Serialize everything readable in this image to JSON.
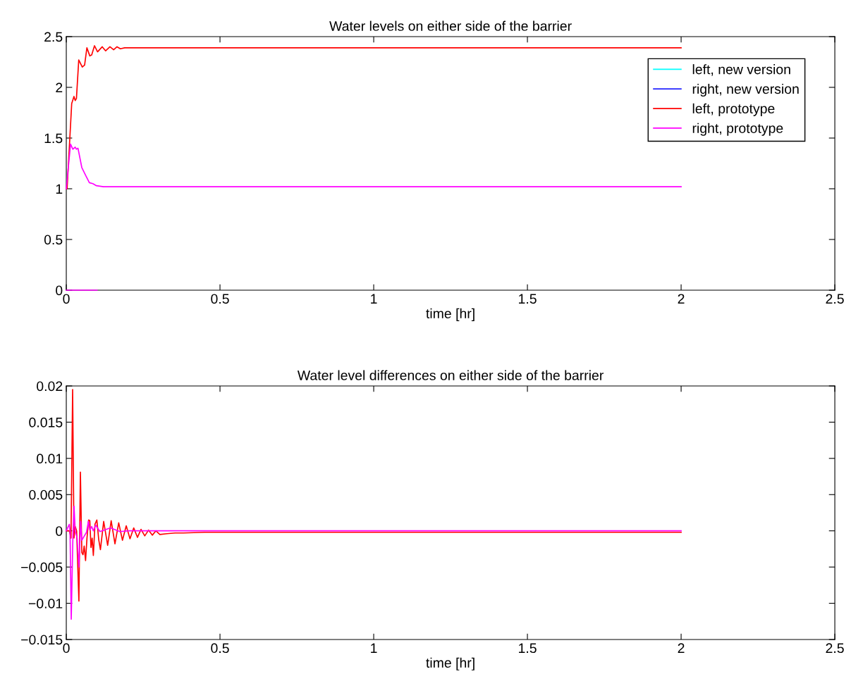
{
  "chart_data": [
    {
      "type": "line",
      "title": "Water levels on either side of the barrier",
      "xlabel": "time [hr]",
      "xlim": [
        0,
        2.5
      ],
      "xticks": [
        0,
        0.5,
        1,
        1.5,
        2,
        2.5
      ],
      "ylim": [
        0,
        2.5
      ],
      "yticks": [
        0,
        0.5,
        1,
        1.5,
        2,
        2.5
      ],
      "grid": false,
      "legend": "top right",
      "series": [
        {
          "name": "left, new version",
          "color": "#00ffff"
        },
        {
          "name": "right, new version",
          "color": "#0000ff"
        },
        {
          "name": "left, prototype",
          "color": "#ff0000",
          "x": [
            0,
            0.0026,
            0.0176,
            0.025,
            0.029,
            0.033,
            0.0405,
            0.052,
            0.0596,
            0.067,
            0.0765,
            0.0826,
            0.0917,
            0.1017,
            0.117,
            0.128,
            0.142,
            0.154,
            0.165,
            0.176,
            0.19,
            0.213,
            2
          ],
          "values": [
            1,
            1,
            1.84,
            1.91,
            1.87,
            1.89,
            2.27,
            2.2,
            2.22,
            2.39,
            2.31,
            2.32,
            2.41,
            2.35,
            2.4,
            2.36,
            2.4,
            2.37,
            2.4,
            2.38,
            2.39,
            2.39,
            2.39
          ]
        },
        {
          "name": "right, prototype",
          "color": "#ff00ff",
          "x": [
            0,
            0.0138,
            0.0214,
            0.029,
            0.033,
            0.038,
            0.0504,
            0.0634,
            0.075,
            0.0864,
            0.098,
            0.121,
            2
          ],
          "values": [
            1,
            1.44,
            1.39,
            1.41,
            1.39,
            1.4,
            1.21,
            1.13,
            1.06,
            1.05,
            1.03,
            1.02,
            1.02
          ]
        },
        {
          "color": "#ff00ff",
          "x": [
            0,
            0.1
          ],
          "values": [
            0,
            0
          ]
        }
      ]
    },
    {
      "type": "line",
      "title": "Water level differences on either side of the barrier",
      "xlabel": "time [hr]",
      "xlim": [
        0,
        2.5
      ],
      "xticks": [
        0,
        0.5,
        1,
        1.5,
        2,
        2.5
      ],
      "ylim": [
        -0.015,
        0.02
      ],
      "yticks": [
        {
          "value": -0.015,
          "label": "−0.015"
        },
        {
          "value": -0.01,
          "label": "−0.01"
        },
        {
          "value": -0.005,
          "label": "−0.005"
        },
        0,
        0.005,
        0.01,
        0.015,
        0.02
      ],
      "grid": false,
      "series": [
        {
          "color": "#ff0000",
          "x": [
            0,
            0.0099,
            0.0153,
            0.0206,
            0.025,
            0.029,
            0.0336,
            0.041,
            0.0459,
            0.0505,
            0.0543,
            0.0581,
            0.0627,
            0.0673,
            0.0726,
            0.0765,
            0.0803,
            0.0841,
            0.088,
            0.0933,
            0.0994,
            0.1055,
            0.111,
            0.1216,
            0.1346,
            0.146,
            0.1583,
            0.1705,
            0.1827,
            0.195,
            0.2072,
            0.2194,
            0.2316,
            0.2431,
            0.2553,
            0.2676,
            0.2798,
            0.2913,
            0.3043,
            0.3272,
            0.354,
            0.3807,
            0.45,
            2
          ],
          "values": [
            0,
            0,
            -0.001,
            0.0195,
            -0.001,
            0.0006,
            0,
            -0.0097,
            0.0081,
            -0.003,
            -0.0033,
            -0.0021,
            -0.0041,
            -0.001,
            0.0015,
            0.0014,
            -0.0023,
            -0.001,
            -0.0034,
            0.0009,
            0.0015,
            -0.0012,
            -0.0026,
            0.0013,
            -0.002,
            0.0014,
            -0.0018,
            0.0011,
            -0.0013,
            0.0007,
            -0.0011,
            0.0004,
            -0.0009,
            0.0002,
            -0.0007,
            0.0001,
            -0.0006,
            0,
            -0.0005,
            -0.0004,
            -0.0003,
            -0.0003,
            -0.0002,
            -0.0002
          ]
        },
        {
          "color": "#ff00ff",
          "x": [
            0,
            0.0099,
            0.0122,
            0.0161,
            0.0214,
            0.0252,
            0.029,
            0.0352,
            0.041,
            0.0467,
            0.0505,
            0.0574,
            0.0658,
            0.0719,
            0.0765,
            0.0826,
            0.088,
            0.0956,
            0.1094,
            0.1438,
            0.1743,
            0.2049,
            2
          ],
          "values": [
            0,
            0.0009,
            0,
            -0.0122,
            -0.001,
            0.0034,
            0,
            -0.001,
            -0.005,
            0.0013,
            -0.0013,
            -0.0008,
            -0.0002,
            0.0013,
            0.0001,
            0.0006,
            0,
            0.0008,
            -0.0001,
            0.0004,
            -0.0001,
            0,
            0
          ]
        }
      ]
    }
  ]
}
